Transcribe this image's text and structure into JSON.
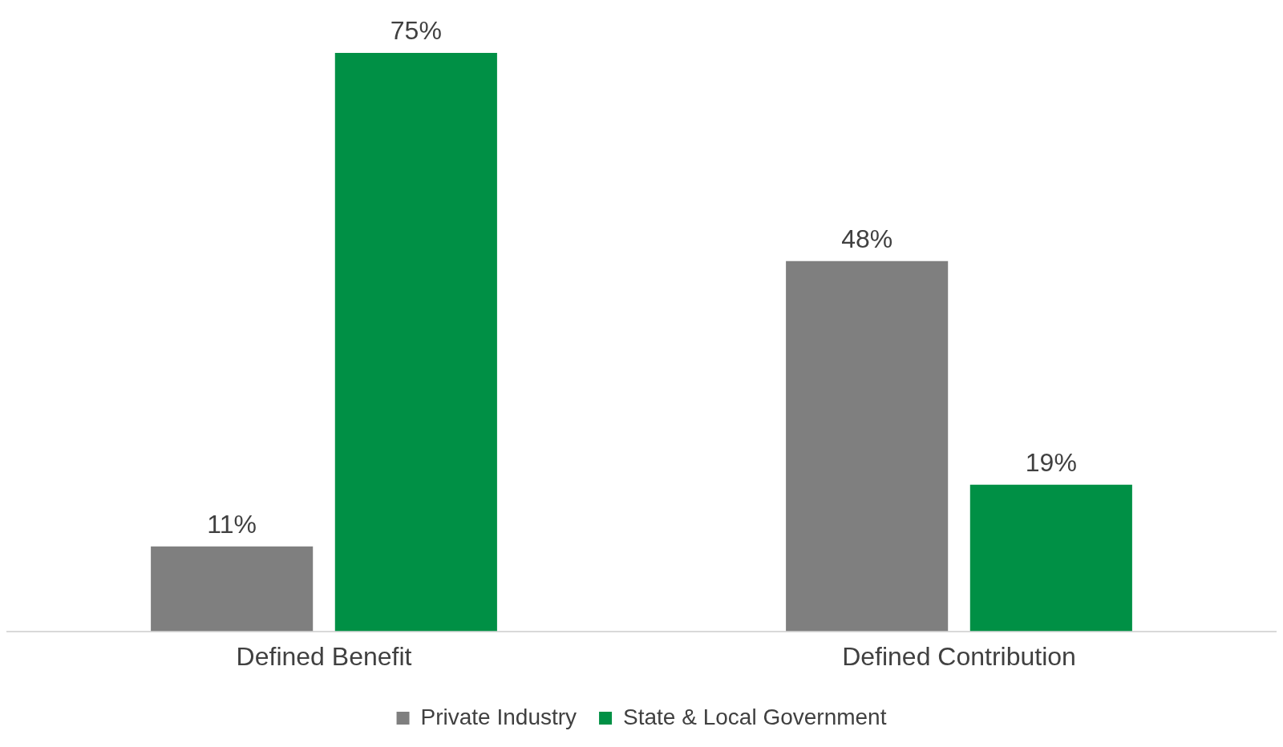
{
  "chart_data": {
    "type": "bar",
    "categories": [
      "Defined Benefit",
      "Defined Contribution"
    ],
    "series": [
      {
        "name": "Private Industry",
        "color": "#7f7f7f",
        "values": [
          11,
          48
        ],
        "value_labels": [
          "11%",
          "48%"
        ]
      },
      {
        "name": "State & Local Government",
        "color": "#009045",
        "values": [
          75,
          19
        ],
        "value_labels": [
          "75%",
          "19%"
        ]
      }
    ],
    "tick_labels": "x",
    "grid": false,
    "legend": "bottom"
  }
}
